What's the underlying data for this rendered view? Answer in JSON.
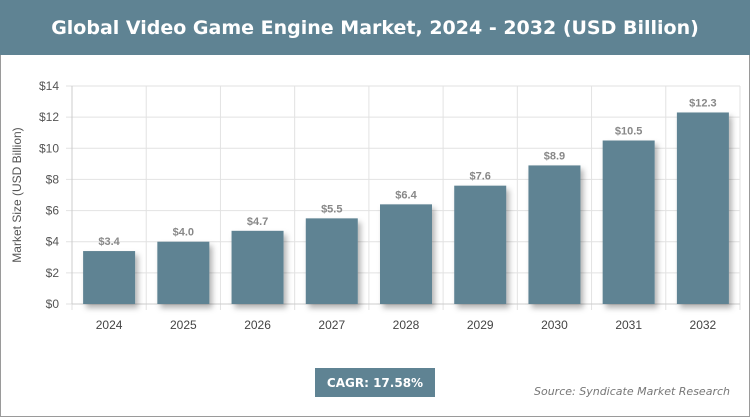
{
  "header": {
    "title": "Global Video Game Engine Market, 2024 - 2032 (USD Billion)"
  },
  "chart_data": {
    "type": "bar",
    "title": "Global Video Game Engine Market, 2024 - 2032 (USD Billion)",
    "categories": [
      "2024",
      "2025",
      "2026",
      "2027",
      "2028",
      "2029",
      "2030",
      "2031",
      "2032"
    ],
    "values": [
      3.4,
      4.0,
      4.7,
      5.5,
      6.4,
      7.6,
      8.9,
      10.5,
      12.3
    ],
    "data_labels": [
      "$3.4",
      "$4.0",
      "$4.7",
      "$5.5",
      "$6.4",
      "$7.6",
      "$8.9",
      "$10.5",
      "$12.3"
    ],
    "xlabel": "",
    "ylabel": "Market Size (USD Billion)",
    "ylim": [
      0,
      14
    ],
    "yticks": [
      0,
      2,
      4,
      6,
      8,
      10,
      12,
      14
    ],
    "ytick_labels": [
      "$0",
      "$2",
      "$4",
      "$6",
      "$8",
      "$10",
      "$12",
      "$14"
    ],
    "grid": true,
    "bar_color": "#5f8393"
  },
  "footer": {
    "cagr": "CAGR: 17.58%",
    "source": "Source: Syndicate Market Research"
  }
}
